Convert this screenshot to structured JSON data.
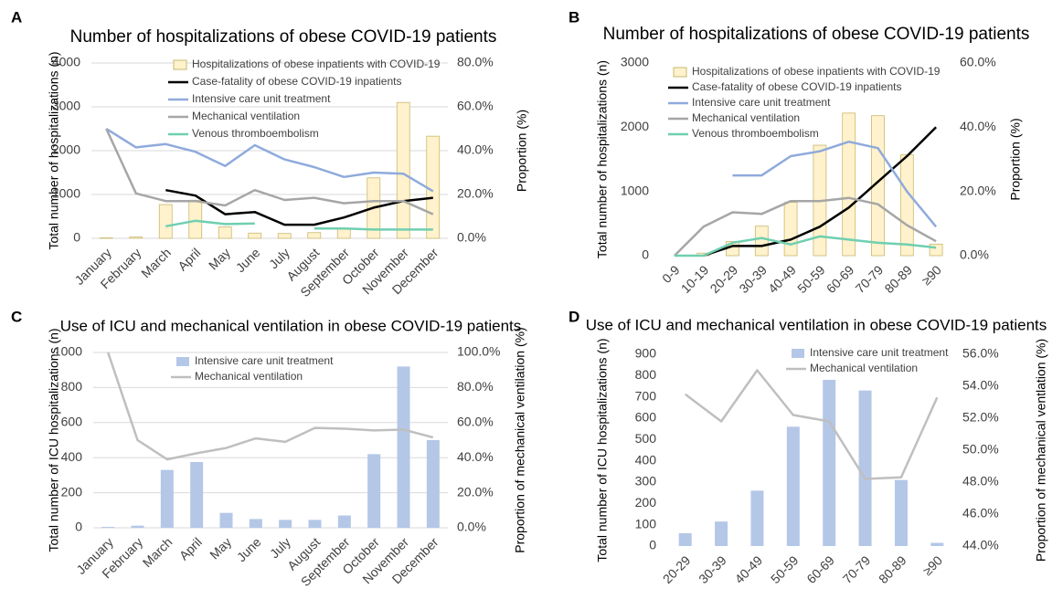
{
  "chart_data": [
    {
      "type": "bar",
      "panel": "A",
      "title": "Number of hospitalizations of obese COVID-19 patients",
      "y_label": "Total number of hospitalizations (n)",
      "y2_label": "Proportion (%)",
      "categories": [
        "January",
        "February",
        "March",
        "April",
        "May",
        "June",
        "July",
        "August",
        "September",
        "October",
        "November",
        "December"
      ],
      "ylim": [
        0,
        4000
      ],
      "yticks": [
        0,
        1000,
        2000,
        3000,
        4000
      ],
      "y2lim": [
        0,
        80
      ],
      "y2ticks": [
        {
          "value": 0,
          "label": "0.0%"
        },
        {
          "value": 20,
          "label": "20.0%"
        },
        {
          "value": 40,
          "label": "40.0%"
        },
        {
          "value": 60,
          "label": "60.0%"
        },
        {
          "value": 80,
          "label": "80.0%"
        }
      ],
      "grid": true,
      "series": [
        {
          "name": "Hospitalizations of obese inpatients with COVID-19",
          "color": "#fff2cc",
          "values": [
            10,
            30,
            770,
            870,
            260,
            120,
            110,
            130,
            230,
            1380,
            3100,
            2330
          ]
        },
        {
          "name": "Case-fatality of obese COVID-19 inpatients",
          "color": "#000000",
          "axis": "y2",
          "values": [
            null,
            null,
            22,
            19.5,
            11,
            12,
            6.2,
            6.2,
            9.5,
            14,
            17,
            18.5
          ]
        },
        {
          "name": "Intensive care unit treatment",
          "color": "#8faadc",
          "axis": "y2",
          "values": [
            50,
            41.5,
            43,
            39.5,
            33,
            42.5,
            36,
            32.5,
            28,
            30,
            29.5,
            21.5
          ]
        },
        {
          "name": "Mechanical ventilation",
          "color": "#a6a6a6",
          "axis": "y2",
          "values": [
            50,
            20.5,
            17,
            17,
            15,
            22,
            17.5,
            18.5,
            16,
            17,
            17,
            11
          ]
        },
        {
          "name": "Venous thromboembolism",
          "color": "#6fcfb0",
          "axis": "y2",
          "values": [
            null,
            null,
            5.5,
            8,
            6.5,
            6.8,
            null,
            4.5,
            4.5,
            4,
            4,
            4
          ]
        }
      ]
    },
    {
      "type": "bar",
      "panel": "B",
      "title": "Number of hospitalizations of obese COVID-19 patients",
      "y_label": "Total number of hospitalizations (n)",
      "y2_label": "Proportion (%)",
      "categories": [
        "0-9",
        "10-19",
        "20-29",
        "30-39",
        "40-49",
        "50-59",
        "60-69",
        "70-79",
        "80-89",
        "≥90"
      ],
      "ylim": [
        0,
        3000
      ],
      "yticks": [
        0,
        1000,
        2000,
        3000
      ],
      "y2lim": [
        0,
        60
      ],
      "y2ticks": [
        {
          "value": 0,
          "label": "0.0%"
        },
        {
          "value": 20,
          "label": "20.0%"
        },
        {
          "value": 40,
          "label": "40.0%"
        },
        {
          "value": 60,
          "label": "60.0%"
        }
      ],
      "grid": false,
      "series": [
        {
          "name": "Hospitalizations of obese inpatients with COVID-19",
          "color": "#fff2cc",
          "values": [
            0,
            40,
            220,
            460,
            830,
            1720,
            2220,
            2180,
            1570,
            180
          ]
        },
        {
          "name": "Case-fatality of obese COVID-19 inpatients",
          "color": "#000000",
          "axis": "y2",
          "values": [
            null,
            0,
            3,
            3,
            5,
            9,
            15,
            23,
            31,
            40
          ]
        },
        {
          "name": "Intensive care unit treatment",
          "color": "#8faadc",
          "axis": "y2",
          "values": [
            null,
            null,
            25,
            25,
            31,
            32.5,
            35.5,
            33.5,
            20,
            9
          ]
        },
        {
          "name": "Mechanical ventilation",
          "color": "#a6a6a6",
          "axis": "y2",
          "values": [
            0,
            9,
            13.5,
            13,
            17,
            17,
            18,
            16,
            9.5,
            4.5
          ]
        },
        {
          "name": "Venous thromboembolism",
          "color": "#6fcfb0",
          "axis": "y2",
          "values": [
            0,
            0,
            4,
            5.5,
            3.5,
            6,
            5,
            4,
            3.5,
            2.5
          ]
        }
      ]
    },
    {
      "type": "bar",
      "panel": "C",
      "title": "Use of ICU and mechanical ventilation in obese COVID-19 patients",
      "y_label": "Total number of ICU hospitalizations (n)",
      "y2_label": "Proportion of mechanical ventilation (%)",
      "categories": [
        "January",
        "February",
        "March",
        "April",
        "May",
        "June",
        "July",
        "August",
        "September",
        "October",
        "November",
        "December"
      ],
      "ylim": [
        0,
        1000
      ],
      "yticks": [
        0,
        200,
        400,
        600,
        800,
        1000
      ],
      "y2lim": [
        0,
        100
      ],
      "y2ticks": [
        {
          "value": 0,
          "label": "0.0%"
        },
        {
          "value": 20,
          "label": "20.0%"
        },
        {
          "value": 40,
          "label": "40.0%"
        },
        {
          "value": 60,
          "label": "60.0%"
        },
        {
          "value": 80,
          "label": "80.0%"
        },
        {
          "value": 100,
          "label": "100.0%"
        }
      ],
      "grid": true,
      "series": [
        {
          "name": "Intensive care unit treatment",
          "color": "#b4c7e7",
          "values": [
            5,
            12,
            330,
            375,
            85,
            50,
            45,
            45,
            70,
            420,
            920,
            500
          ]
        },
        {
          "name": "Mechanical ventilation",
          "color": "#bfbfbf",
          "axis": "y2",
          "values": [
            100,
            50,
            39,
            42.5,
            45.5,
            51,
            49,
            57,
            56.5,
            55.5,
            56,
            51.5
          ]
        }
      ]
    },
    {
      "type": "bar",
      "panel": "D",
      "title": "Use of ICU and mechanical ventilation in obese COVID-19 patients",
      "y_label": "Total number of ICU hospitalizations (n)",
      "y2_label": "Proportion of mechanical ventlation (%)",
      "categories": [
        "20-29",
        "30-39",
        "40-49",
        "50-59",
        "60-69",
        "70-79",
        "80-89",
        "≥90"
      ],
      "ylim": [
        0,
        900
      ],
      "yticks": [
        0,
        100,
        200,
        300,
        400,
        500,
        600,
        700,
        800,
        900
      ],
      "y2lim": [
        44,
        56
      ],
      "y2ticks": [
        {
          "value": 44,
          "label": "44.0%"
        },
        {
          "value": 46,
          "label": "46.0%"
        },
        {
          "value": 48,
          "label": "48.0%"
        },
        {
          "value": 50,
          "label": "50.0%"
        },
        {
          "value": 52,
          "label": "52.0%"
        },
        {
          "value": 54,
          "label": "54.0%"
        },
        {
          "value": 56,
          "label": "56.0%"
        }
      ],
      "grid": false,
      "series": [
        {
          "name": "Intensive care unit treatment",
          "color": "#b4c7e7",
          "values": [
            60,
            115,
            260,
            560,
            780,
            730,
            310,
            15
          ]
        },
        {
          "name": "Mechanical ventilation",
          "color": "#bfbfbf",
          "axis": "y2",
          "values": [
            53.5,
            51.8,
            55.0,
            52.2,
            51.8,
            48.2,
            48.3,
            53.3
          ]
        }
      ]
    }
  ]
}
